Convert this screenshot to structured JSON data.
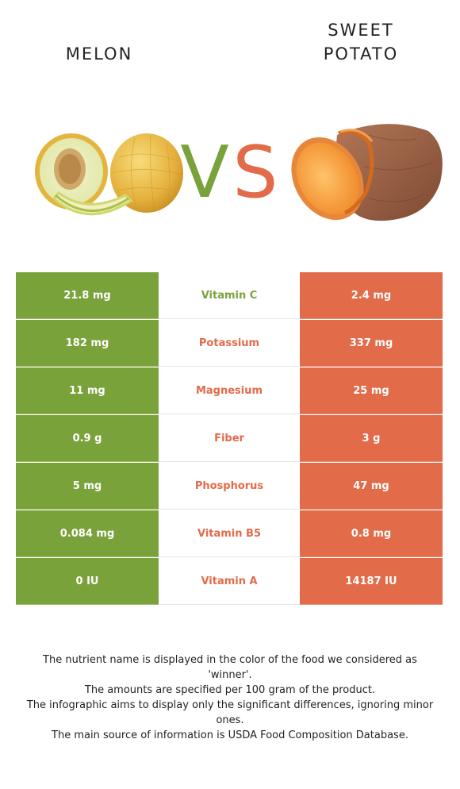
{
  "food_left": {
    "name": "MELON",
    "color": "#7aa23a",
    "image_icon": "melon-illustration"
  },
  "food_right": {
    "name_line1": "SWEET",
    "name_line2": "POTATO",
    "color": "#e26b4a",
    "image_icon": "sweet-potato-illustration"
  },
  "vs": {
    "v": "V",
    "s": "S",
    "v_color": "#7aa23a",
    "s_color": "#e26b4a"
  },
  "rows": [
    {
      "left": "21.8 mg",
      "nutrient": "Vitamin C",
      "right": "2.4 mg",
      "winner": "left"
    },
    {
      "left": "182 mg",
      "nutrient": "Potassium",
      "right": "337 mg",
      "winner": "right"
    },
    {
      "left": "11 mg",
      "nutrient": "Magnesium",
      "right": "25 mg",
      "winner": "right"
    },
    {
      "left": "0.9 g",
      "nutrient": "Fiber",
      "right": "3 g",
      "winner": "right"
    },
    {
      "left": "5 mg",
      "nutrient": "Phosphorus",
      "right": "47 mg",
      "winner": "right"
    },
    {
      "left": "0.084 mg",
      "nutrient": "Vitamin B5",
      "right": "0.8 mg",
      "winner": "right"
    },
    {
      "left": "0 IU",
      "nutrient": "Vitamin A",
      "right": "14187 IU",
      "winner": "right"
    }
  ],
  "footnotes": [
    "The nutrient name is displayed in the color of the food we considered as 'winner'.",
    "The amounts are specified per 100 gram of the product.",
    "The infographic aims to display only the significant differences, ignoring minor ones.",
    "The main source of information is USDA Food Composition Database."
  ]
}
